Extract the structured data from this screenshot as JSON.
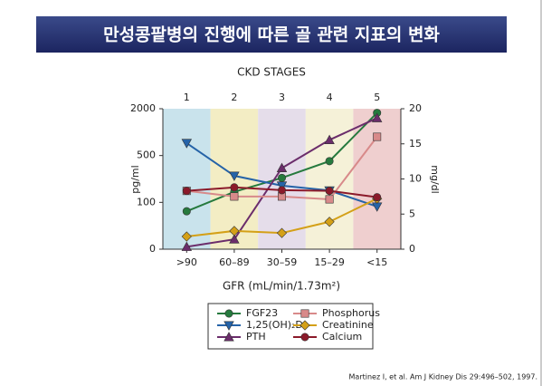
{
  "chart_data": {
    "type": "line",
    "title": "만성콩팥병의 진행에 따른 골 관련 지표의 변화",
    "stage_title": "CKD STAGES",
    "stages": [
      "1",
      "2",
      "3",
      "4",
      "5"
    ],
    "band_colors": [
      "#c9e3ec",
      "#f3edc4",
      "#e5ddea",
      "#f5f1d8",
      "#efcfcf"
    ],
    "categories": [
      ">90",
      "60–89",
      "30–59",
      "15–29",
      "<15"
    ],
    "xlabel": "GFR (mL/min/1.73m²)",
    "ylabel": "pg/ml",
    "y2label": "mg/dl",
    "ylim": [
      0,
      2000
    ],
    "yticks": [
      0,
      100,
      500,
      2000
    ],
    "y2lim": [
      0,
      20
    ],
    "y2ticks": [
      0,
      5,
      10,
      15,
      20
    ],
    "series": [
      {
        "name": "FGF23",
        "color": "#267a3e",
        "marker": "circle",
        "values": [
          81,
          190,
          309,
          452,
          1867
        ]
      },
      {
        "name": "1,25(OH)₂D",
        "color": "#2563a8",
        "marker": "triangle-down",
        "values": [
          900,
          327,
          243,
          201,
          91
        ]
      },
      {
        "name": "PTH",
        "color": "#6b2d6b",
        "marker": "triangle-up",
        "values": [
          5,
          21,
          393,
          1000,
          1700
        ]
      },
      {
        "name": "Phosphorus",
        "color": "#d88a8a",
        "marker": "square",
        "axis": "y2",
        "values": [
          8.3,
          7.5,
          7.5,
          7.1,
          16.0
        ]
      },
      {
        "name": "Creatinine",
        "color": "#d4a017",
        "marker": "diamond",
        "axis": "y2",
        "values": [
          1.8,
          2.6,
          2.3,
          3.9,
          7.2
        ]
      },
      {
        "name": "Calcium",
        "color": "#8b1a2a",
        "marker": "circle",
        "axis": "y2",
        "values": [
          8.3,
          8.8,
          8.4,
          8.3,
          7.4
        ]
      }
    ],
    "source": "Martinez I, et al. Am J Kidney Dis 29:496–502, 1997."
  }
}
